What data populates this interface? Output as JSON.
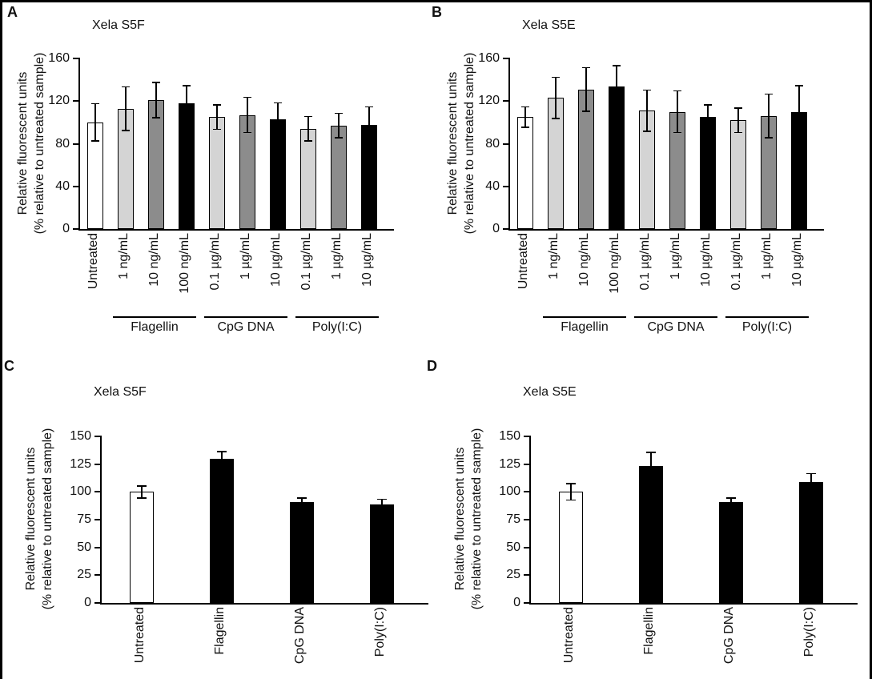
{
  "figure": {
    "panels": [
      {
        "letter": "A"
      },
      {
        "letter": "B"
      },
      {
        "letter": "C"
      },
      {
        "letter": "D"
      }
    ]
  },
  "chart_data": [
    {
      "type": "bar",
      "panel": "A",
      "title": "Xela S5F",
      "ylabel": [
        "Relative fluorescent units",
        "(% relative to untreated sample)"
      ],
      "ylim": [
        0,
        160
      ],
      "yticks": [
        0,
        40,
        80,
        120,
        160
      ],
      "grid": false,
      "legend": "none",
      "categories": [
        "Untreated",
        "1 ng/mL",
        "10 ng/mL",
        "100 ng/mL",
        "0.1 µg/mL",
        "1 µg/mL",
        "10 µg/mL",
        "0.1 µg/mL",
        "1 µg/mL",
        "10 µg/mL"
      ],
      "values": [
        100,
        113,
        121,
        118,
        105,
        107,
        103,
        94,
        97,
        98
      ],
      "errors": [
        18,
        21,
        17,
        17,
        12,
        17,
        16,
        12,
        12,
        17
      ],
      "bar_colors": [
        "#ffffff",
        "#d4d4d4",
        "#8c8c8c",
        "#000000",
        "#d4d4d4",
        "#8c8c8c",
        "#000000",
        "#d4d4d4",
        "#8c8c8c",
        "#000000"
      ],
      "groups": [
        {
          "label": "Flagellin",
          "start": 1,
          "end": 3
        },
        {
          "label": "CpG DNA",
          "start": 4,
          "end": 6
        },
        {
          "label": "Poly(I:C)",
          "start": 7,
          "end": 9
        }
      ]
    },
    {
      "type": "bar",
      "panel": "B",
      "title": "Xela S5E",
      "ylabel": [
        "Relative fluorescent units",
        "(% relative to untreated sample)"
      ],
      "ylim": [
        0,
        160
      ],
      "yticks": [
        0,
        40,
        80,
        120,
        160
      ],
      "grid": false,
      "legend": "none",
      "categories": [
        "Untreated",
        "1 ng/mL",
        "10 ng/mL",
        "100 ng/mL",
        "0.1 µg/mL",
        "1 µg/mL",
        "10 µg/mL",
        "0.1 µg/mL",
        "1 µg/mL",
        "10 µg/mL"
      ],
      "values": [
        105,
        123,
        131,
        134,
        111,
        110,
        105,
        102,
        106,
        110
      ],
      "errors": [
        10,
        20,
        21,
        20,
        20,
        20,
        12,
        12,
        21,
        25
      ],
      "bar_colors": [
        "#ffffff",
        "#d4d4d4",
        "#8c8c8c",
        "#000000",
        "#d4d4d4",
        "#8c8c8c",
        "#000000",
        "#d4d4d4",
        "#8c8c8c",
        "#000000"
      ],
      "groups": [
        {
          "label": "Flagellin",
          "start": 1,
          "end": 3
        },
        {
          "label": "CpG DNA",
          "start": 4,
          "end": 6
        },
        {
          "label": "Poly(I:C)",
          "start": 7,
          "end": 9
        }
      ]
    },
    {
      "type": "bar",
      "panel": "C",
      "title": "Xela S5F",
      "ylabel": [
        "Relative fluorescent units",
        "(% relative to untreated sample)"
      ],
      "ylim": [
        0,
        150
      ],
      "yticks": [
        0,
        25,
        50,
        75,
        100,
        125,
        150
      ],
      "grid": false,
      "legend": "none",
      "categories": [
        "Untreated",
        "Flagellin",
        "CpG DNA",
        "Poly(I:C)"
      ],
      "values": [
        100,
        130,
        91,
        89
      ],
      "errors": [
        6,
        7,
        4,
        5
      ],
      "bar_colors": [
        "#ffffff",
        "#000000",
        "#000000",
        "#000000"
      ],
      "groups": []
    },
    {
      "type": "bar",
      "panel": "D",
      "title": "Xela S5E",
      "ylabel": [
        "Relative fluorescent units",
        "(% relative to untreated sample)"
      ],
      "ylim": [
        0,
        150
      ],
      "yticks": [
        0,
        25,
        50,
        75,
        100,
        125,
        150
      ],
      "grid": false,
      "legend": "none",
      "categories": [
        "Untreated",
        "Flagellin",
        "CpG DNA",
        "Poly(I:C)"
      ],
      "values": [
        100,
        123,
        91,
        109
      ],
      "errors": [
        8,
        13,
        4,
        8
      ],
      "bar_colors": [
        "#ffffff",
        "#000000",
        "#000000",
        "#000000"
      ],
      "groups": []
    }
  ]
}
